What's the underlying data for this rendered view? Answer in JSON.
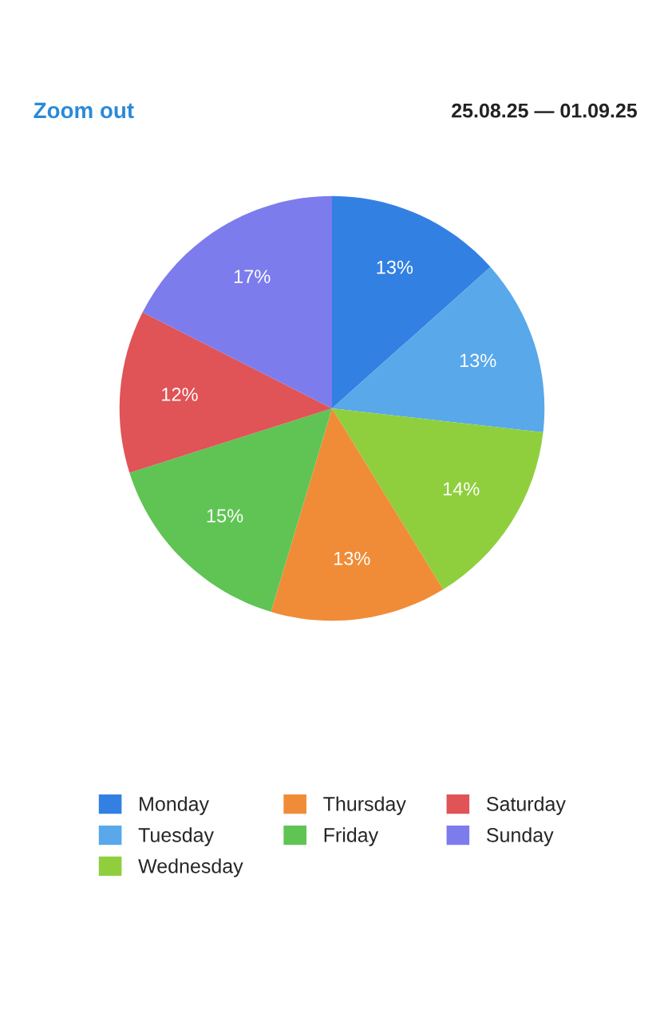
{
  "chart_data": {
    "type": "pie",
    "subtitle": "25.08.25 — 01.09.25",
    "annotations": [
      "Zoom out"
    ],
    "categories": [
      "Monday",
      "Tuesday",
      "Wednesday",
      "Thursday",
      "Friday",
      "Saturday",
      "Sunday"
    ],
    "values": [
      13,
      13,
      14,
      13,
      15,
      12,
      17
    ],
    "colors": [
      "#3380e3",
      "#58a8ea",
      "#8fcf3d",
      "#f08c38",
      "#5fc454",
      "#e05356",
      "#7c7ced"
    ],
    "value_labels": [
      "13%",
      "13%",
      "14%",
      "13%",
      "15%",
      "12%",
      "17%"
    ],
    "legend": "bottom"
  }
}
